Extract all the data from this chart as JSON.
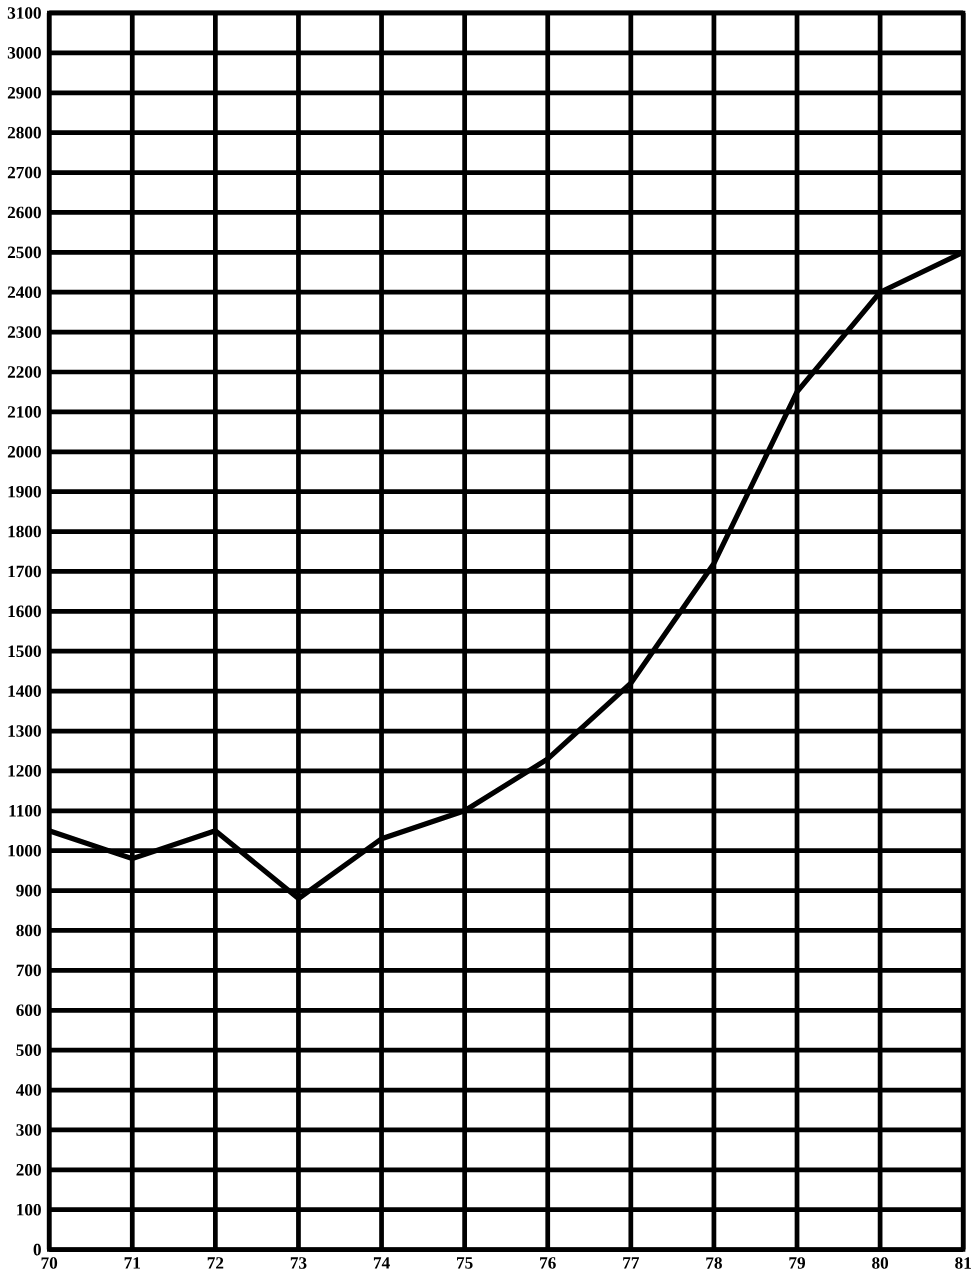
{
  "chart_data": {
    "type": "line",
    "x": [
      70,
      71,
      72,
      73,
      74,
      75,
      76,
      77,
      78,
      79,
      80,
      81
    ],
    "values": [
      1050,
      980,
      1050,
      880,
      1030,
      1100,
      1230,
      1420,
      1720,
      2150,
      2400,
      2500
    ],
    "color": "#000000",
    "xlim": [
      70,
      81
    ],
    "xticks": [
      70,
      71,
      72,
      73,
      74,
      75,
      76,
      77,
      78,
      79,
      80,
      81
    ],
    "ylim": [
      0,
      3100
    ],
    "yticks": [
      0,
      100,
      200,
      300,
      400,
      500,
      600,
      700,
      800,
      900,
      1000,
      1100,
      1200,
      1300,
      1400,
      1500,
      1600,
      1700,
      1800,
      1900,
      2000,
      2100,
      2200,
      2300,
      2400,
      2500,
      2600,
      2700,
      2800,
      2900,
      3000,
      3100
    ],
    "grid": true,
    "marker": "none",
    "line_style": "solid"
  }
}
